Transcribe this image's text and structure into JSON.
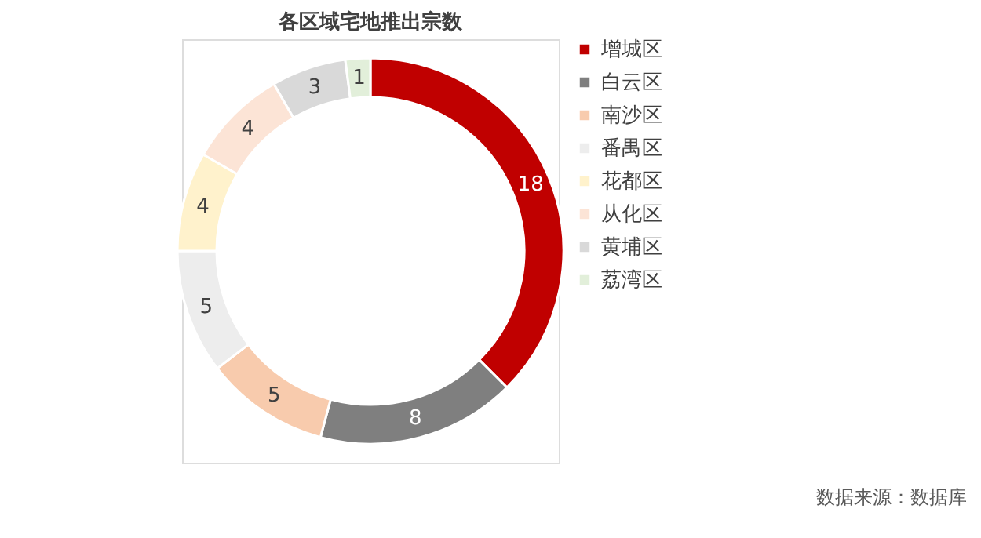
{
  "chart_data": {
    "type": "donut",
    "title": "各区域宅地推出宗数",
    "categories": [
      "增城区",
      "白云区",
      "南沙区",
      "番禺区",
      "花都区",
      "从化区",
      "黄埔区",
      "荔湾区"
    ],
    "values": [
      18,
      8,
      5,
      5,
      4,
      4,
      3,
      1
    ],
    "colors": [
      "#c00000",
      "#7f7f7f",
      "#f8cbad",
      "#ededed",
      "#fff2cc",
      "#fce4d6",
      "#d9d9d9",
      "#e2efda"
    ],
    "data_labels": true,
    "legend": "right",
    "annotations": [
      "数据来源：数据库"
    ]
  }
}
